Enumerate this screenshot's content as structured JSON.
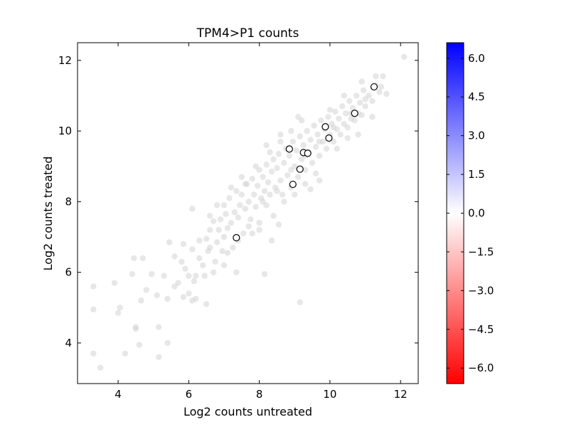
{
  "chart_data": {
    "type": "scatter",
    "title": "TPM4>P1 counts",
    "xlabel": "Log2 counts untreated",
    "ylabel": "Log2 counts treated",
    "xlim": [
      2.85,
      12.5
    ],
    "ylim": [
      2.85,
      12.5
    ],
    "xticks": [
      4,
      6,
      8,
      10,
      12
    ],
    "yticks": [
      4,
      6,
      8,
      10,
      12
    ],
    "grid": false,
    "background_color": "#d3d3d3",
    "highlight_face_color": "#ffffff",
    "highlight_edge_color": "#000000",
    "background_points": [
      [
        3.3,
        5.6
      ],
      [
        3.3,
        4.95
      ],
      [
        3.3,
        3.7
      ],
      [
        3.5,
        3.3
      ],
      [
        3.9,
        5.7
      ],
      [
        4.0,
        4.85
      ],
      [
        4.05,
        5.0
      ],
      [
        4.2,
        3.7
      ],
      [
        4.4,
        5.95
      ],
      [
        4.45,
        6.4
      ],
      [
        4.5,
        4.45
      ],
      [
        4.5,
        4.4
      ],
      [
        4.6,
        3.95
      ],
      [
        4.65,
        5.2
      ],
      [
        4.7,
        6.4
      ],
      [
        4.8,
        5.5
      ],
      [
        4.95,
        5.95
      ],
      [
        5.1,
        5.35
      ],
      [
        5.15,
        4.45
      ],
      [
        5.15,
        3.6
      ],
      [
        5.3,
        5.9
      ],
      [
        5.4,
        4.0
      ],
      [
        5.45,
        6.85
      ],
      [
        5.4,
        5.25
      ],
      [
        5.6,
        6.45
      ],
      [
        5.7,
        5.7
      ],
      [
        5.8,
        6.3
      ],
      [
        5.85,
        6.8
      ],
      [
        5.85,
        5.3
      ],
      [
        6.0,
        5.9
      ],
      [
        6.0,
        5.4
      ],
      [
        6.1,
        6.65
      ],
      [
        6.1,
        5.2
      ],
      [
        6.15,
        5.75
      ],
      [
        6.2,
        5.25
      ],
      [
        6.3,
        6.9
      ],
      [
        6.3,
        6.4
      ],
      [
        6.45,
        5.9
      ],
      [
        6.5,
        5.1
      ],
      [
        6.5,
        6.95
      ],
      [
        6.55,
        6.6
      ],
      [
        6.1,
        7.8
      ],
      [
        6.6,
        7.2
      ],
      [
        6.6,
        6.7
      ],
      [
        6.7,
        7.45
      ],
      [
        6.75,
        6.3
      ],
      [
        6.8,
        6.85
      ],
      [
        6.85,
        7.2
      ],
      [
        6.9,
        7.5
      ],
      [
        6.95,
        6.6
      ],
      [
        7.0,
        7.9
      ],
      [
        7.0,
        7.0
      ],
      [
        7.05,
        7.65
      ],
      [
        7.1,
        7.25
      ],
      [
        7.15,
        8.1
      ],
      [
        7.2,
        7.4
      ],
      [
        7.25,
        6.7
      ],
      [
        7.3,
        7.7
      ],
      [
        7.35,
        8.3
      ],
      [
        7.4,
        7.55
      ],
      [
        7.45,
        7.9
      ],
      [
        7.5,
        8.2
      ],
      [
        7.55,
        7.1
      ],
      [
        7.6,
        7.8
      ],
      [
        7.65,
        8.5
      ],
      [
        7.7,
        8.0
      ],
      [
        7.75,
        7.5
      ],
      [
        7.8,
        8.65
      ],
      [
        7.85,
        8.2
      ],
      [
        7.9,
        7.85
      ],
      [
        7.95,
        8.45
      ],
      [
        8.0,
        8.9
      ],
      [
        8.0,
        7.4
      ],
      [
        8.05,
        8.1
      ],
      [
        8.1,
        8.7
      ],
      [
        8.15,
        8.3
      ],
      [
        8.2,
        7.9
      ],
      [
        8.2,
        9.05
      ],
      [
        8.25,
        8.55
      ],
      [
        8.3,
        8.2
      ],
      [
        8.35,
        8.85
      ],
      [
        8.4,
        9.2
      ],
      [
        8.4,
        7.6
      ],
      [
        8.45,
        8.4
      ],
      [
        8.5,
        8.95
      ],
      [
        8.55,
        9.35
      ],
      [
        8.6,
        8.6
      ],
      [
        8.65,
        8.2
      ],
      [
        8.7,
        9.1
      ],
      [
        8.75,
        9.5
      ],
      [
        8.8,
        8.75
      ],
      [
        8.85,
        9.3
      ],
      [
        8.9,
        8.4
      ],
      [
        8.95,
        9.7
      ],
      [
        9.0,
        9.0
      ],
      [
        9.05,
        9.45
      ],
      [
        9.1,
        8.7
      ],
      [
        9.15,
        9.85
      ],
      [
        9.2,
        9.2
      ],
      [
        9.25,
        9.6
      ],
      [
        9.3,
        8.9
      ],
      [
        9.35,
        10.0
      ],
      [
        9.4,
        9.4
      ],
      [
        9.45,
        9.75
      ],
      [
        9.5,
        9.1
      ],
      [
        9.55,
        10.15
      ],
      [
        9.6,
        9.55
      ],
      [
        9.65,
        9.9
      ],
      [
        9.7,
        9.3
      ],
      [
        9.75,
        10.3
      ],
      [
        9.8,
        9.7
      ],
      [
        9.85,
        10.05
      ],
      [
        9.9,
        9.5
      ],
      [
        9.95,
        10.4
      ],
      [
        10.0,
        9.9
      ],
      [
        10.05,
        10.2
      ],
      [
        10.1,
        9.7
      ],
      [
        10.15,
        10.55
      ],
      [
        10.2,
        10.05
      ],
      [
        10.25,
        10.35
      ],
      [
        10.3,
        9.9
      ],
      [
        10.35,
        10.7
      ],
      [
        10.4,
        10.2
      ],
      [
        10.45,
        10.5
      ],
      [
        10.5,
        10.1
      ],
      [
        10.55,
        10.85
      ],
      [
        10.6,
        10.35
      ],
      [
        10.65,
        10.65
      ],
      [
        10.7,
        10.3
      ],
      [
        10.75,
        11.0
      ],
      [
        10.8,
        10.5
      ],
      [
        10.85,
        10.8
      ],
      [
        10.9,
        10.45
      ],
      [
        10.95,
        11.15
      ],
      [
        11.0,
        10.7
      ],
      [
        11.1,
        11.0
      ],
      [
        11.2,
        10.85
      ],
      [
        11.3,
        11.3
      ],
      [
        11.4,
        11.1
      ],
      [
        11.5,
        11.55
      ],
      [
        11.45,
        11.25
      ],
      [
        12.1,
        12.1
      ],
      [
        8.7,
        8.0
      ],
      [
        9.0,
        8.2
      ],
      [
        9.3,
        8.5
      ],
      [
        9.6,
        8.8
      ],
      [
        7.9,
        9.0
      ],
      [
        8.2,
        9.6
      ],
      [
        8.6,
        9.9
      ],
      [
        9.1,
        10.4
      ],
      [
        7.5,
        8.7
      ],
      [
        7.2,
        8.4
      ],
      [
        10.2,
        9.5
      ],
      [
        10.5,
        9.8
      ],
      [
        8.35,
        6.9
      ],
      [
        8.55,
        7.35
      ],
      [
        8.15,
        5.95
      ],
      [
        9.15,
        5.15
      ],
      [
        7.35,
        6.0
      ],
      [
        7.0,
        6.2
      ],
      [
        6.7,
        6.0
      ],
      [
        7.8,
        7.1
      ],
      [
        8.0,
        7.2
      ],
      [
        9.45,
        8.35
      ],
      [
        9.7,
        8.6
      ],
      [
        10.8,
        9.9
      ],
      [
        11.2,
        10.4
      ],
      [
        11.6,
        11.05
      ],
      [
        9.2,
        10.3
      ],
      [
        8.9,
        10.0
      ],
      [
        8.6,
        9.7
      ],
      [
        8.3,
        9.4
      ],
      [
        10.0,
        10.6
      ],
      [
        10.4,
        11.0
      ],
      [
        10.9,
        11.4
      ],
      [
        11.3,
        11.55
      ],
      [
        7.6,
        8.5
      ],
      [
        7.7,
        7.3
      ],
      [
        8.1,
        8.0
      ],
      [
        8.5,
        8.3
      ],
      [
        8.9,
        8.9
      ],
      [
        9.3,
        9.3
      ],
      [
        9.7,
        9.7
      ],
      [
        10.1,
        10.1
      ],
      [
        10.6,
        10.5
      ],
      [
        11.0,
        10.9
      ],
      [
        6.4,
        6.2
      ],
      [
        6.2,
        5.9
      ],
      [
        5.9,
        6.1
      ],
      [
        5.6,
        5.6
      ],
      [
        7.1,
        6.55
      ],
      [
        7.4,
        6.9
      ],
      [
        6.8,
        7.9
      ],
      [
        6.6,
        7.6
      ]
    ],
    "highlight_points": [
      [
        7.35,
        6.98
      ],
      [
        8.95,
        8.49
      ],
      [
        9.15,
        8.92
      ],
      [
        8.85,
        9.49
      ],
      [
        9.25,
        9.39
      ],
      [
        9.37,
        9.37
      ],
      [
        9.87,
        10.12
      ],
      [
        9.97,
        9.8
      ],
      [
        10.7,
        10.5
      ],
      [
        11.25,
        11.25
      ]
    ],
    "colorbar": {
      "range": [
        -6.6,
        6.6
      ],
      "ticks": [
        -6.0,
        -4.5,
        -3.0,
        -1.5,
        0.0,
        1.5,
        3.0,
        4.5,
        6.0
      ],
      "tick_labels": [
        "−6.0",
        "−4.5",
        "−3.0",
        "−1.5",
        "0.0",
        "1.5",
        "3.0",
        "4.5",
        "6.0"
      ],
      "colors": [
        "#ff0000",
        "#ffffff",
        "#0000ff"
      ]
    }
  }
}
